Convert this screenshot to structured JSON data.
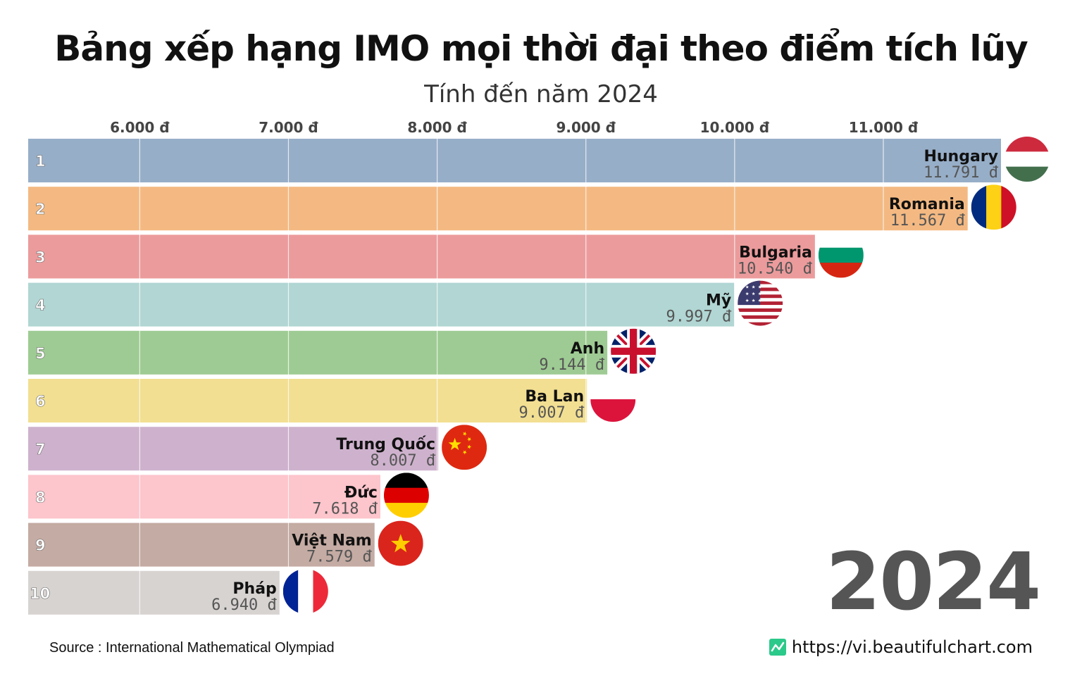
{
  "title": "Bảng xếp hạng IMO mọi thời đại theo điểm tích lũy",
  "subtitle": "Tính đến năm 2024",
  "year": "2024",
  "source": "Source : International Mathematical Olympiad",
  "site": "https://vi.beautifulchart.com",
  "chart_data": {
    "type": "bar",
    "orientation": "horizontal",
    "axis": {
      "ticks": [
        6000,
        7000,
        8000,
        9000,
        10000,
        11000
      ],
      "tick_labels": [
        "6.000 đ",
        "7.000 đ",
        "8.000 đ",
        "9.000 đ",
        "10.000 đ",
        "11.000 đ"
      ],
      "xlim": [
        5250,
        11791
      ],
      "position": "top"
    },
    "rows": [
      {
        "rank": "1",
        "name": "Hungary",
        "value": 11791,
        "value_label": "11.791 đ",
        "color": "#97aec8",
        "flag": "hungary-flag"
      },
      {
        "rank": "2",
        "name": "Romania",
        "value": 11567,
        "value_label": "11.567 đ",
        "color": "#f4b982",
        "flag": "romania-flag"
      },
      {
        "rank": "3",
        "name": "Bulgaria",
        "value": 10540,
        "value_label": "10.540 đ",
        "color": "#ec9b9c",
        "flag": "bulgaria-flag"
      },
      {
        "rank": "4",
        "name": "Mỹ",
        "value": 9997,
        "value_label": "9.997 đ",
        "color": "#b1d6d3",
        "flag": "usa-flag"
      },
      {
        "rank": "5",
        "name": "Anh",
        "value": 9144,
        "value_label": "9.144 đ",
        "color": "#9ecb93",
        "flag": "uk-flag"
      },
      {
        "rank": "6",
        "name": "Ba Lan",
        "value": 9007,
        "value_label": "9.007 đ",
        "color": "#f2df92",
        "flag": "poland-flag"
      },
      {
        "rank": "7",
        "name": "Trung Quốc",
        "value": 8007,
        "value_label": "8.007 đ",
        "color": "#ceb2cd",
        "flag": "china-flag"
      },
      {
        "rank": "8",
        "name": "Đức",
        "value": 7618,
        "value_label": "7.618 đ",
        "color": "#fdc5cc",
        "flag": "germany-flag"
      },
      {
        "rank": "9",
        "name": "Việt Nam",
        "value": 7579,
        "value_label": "7.579 đ",
        "color": "#c4aba3",
        "flag": "vietnam-flag"
      },
      {
        "rank": "10",
        "name": "Pháp",
        "value": 6940,
        "value_label": "6.940 đ",
        "color": "#d7d3d1",
        "flag": "france-flag"
      }
    ]
  }
}
